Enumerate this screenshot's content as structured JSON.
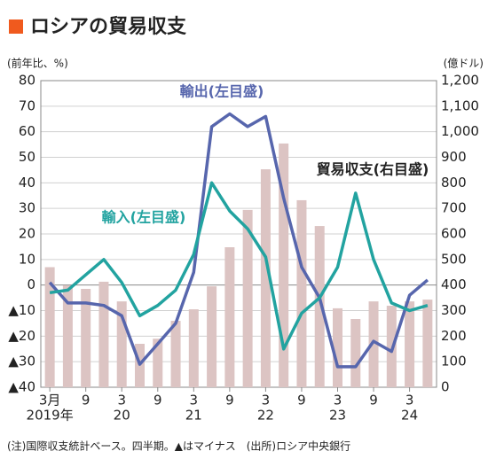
{
  "chart_data": {
    "type": "bar-line",
    "title": "ロシアの貿易収支",
    "y_label": "(前年比、%)",
    "y2_label": "(億ドル)",
    "note": "(注)国際収支統計ベース。四半期。▲はマイナス　(出所)ロシア中央銀行",
    "categories": [
      "3月",
      null,
      "9",
      null,
      "3",
      null,
      "9",
      null,
      "3",
      null,
      "9",
      null,
      "3",
      null,
      "9",
      null,
      "3",
      null,
      "9",
      null,
      "3",
      null
    ],
    "year_labels": [
      "2019年",
      null,
      null,
      null,
      "20",
      null,
      null,
      null,
      "21",
      null,
      null,
      null,
      "22",
      null,
      null,
      null,
      "23",
      null,
      null,
      null,
      "24",
      null
    ],
    "series": [
      {
        "name": "輸出(左目盛)",
        "kind": "line",
        "axis": "y",
        "color": "#5766ad",
        "values": [
          1,
          -7,
          -7,
          -8,
          -12,
          -31,
          -23,
          -15,
          5,
          62,
          67,
          62,
          66,
          34,
          7,
          -5,
          -32,
          -32,
          -22,
          -26,
          -4,
          2
        ]
      },
      {
        "name": "輸入(左目盛)",
        "kind": "line",
        "axis": "y",
        "color": "#22a3a0",
        "values": [
          -3,
          -2,
          4,
          10,
          1,
          -12,
          -8,
          -2,
          12,
          40,
          29,
          22,
          11,
          -25,
          -11,
          -5,
          7,
          36,
          10,
          -7,
          -10,
          -8
        ]
      },
      {
        "name": "貿易収支(右目盛)",
        "kind": "bar",
        "axis": "y2",
        "color": "#dcc4c3",
        "values": [
          470,
          399,
          385,
          413,
          336,
          170,
          190,
          260,
          305,
          395,
          548,
          694,
          853,
          954,
          732,
          631,
          309,
          267,
          336,
          319,
          336,
          343
        ]
      }
    ],
    "ylim": [
      -40,
      80
    ],
    "yticks": [
      {
        "value": -40,
        "label": "▲40"
      },
      {
        "value": -30,
        "label": "▲30"
      },
      {
        "value": -20,
        "label": "▲20"
      },
      {
        "value": -10,
        "label": "▲10"
      },
      0,
      10,
      20,
      30,
      40,
      50,
      60,
      70,
      80
    ],
    "y2lim": [
      0,
      1200
    ],
    "y2ticks": [
      0,
      100,
      200,
      300,
      400,
      500,
      600,
      700,
      800,
      900,
      {
        "value": 1000,
        "label": "1,000"
      },
      {
        "value": 1100,
        "label": "1,100"
      },
      {
        "value": 1200,
        "label": "1,200"
      }
    ],
    "grid": true
  }
}
